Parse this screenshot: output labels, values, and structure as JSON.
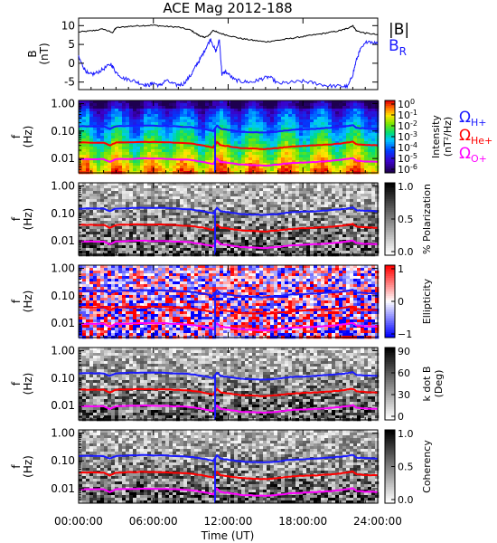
{
  "chart_data": {
    "type": "multi-panel",
    "title": "ACE Mag 2012-188",
    "xlabel": "Time (UT)",
    "x_ticks": [
      "00:00:00",
      "06:00:00",
      "12:00:00",
      "18:00:00",
      "24:00:00"
    ],
    "x_range_hours": [
      0,
      24
    ],
    "panels": [
      {
        "type": "line",
        "ylabel_main": "B",
        "ylabel_unit": "(nT)",
        "y_ticks": [
          "10",
          "5",
          "0",
          "-5"
        ],
        "y_tick_values": [
          10,
          5,
          0,
          -5
        ],
        "ylim": [
          -7,
          12
        ],
        "series": [
          {
            "name": "|B|",
            "color": "#000000",
            "points": [
              [
                0,
                8.3
              ],
              [
                1,
                8.6
              ],
              [
                2,
                9.1
              ],
              [
                2.7,
                8.1
              ],
              [
                3,
                9.4
              ],
              [
                4,
                9.8
              ],
              [
                5,
                10.0
              ],
              [
                6,
                10.1
              ],
              [
                7,
                9.8
              ],
              [
                8,
                9.6
              ],
              [
                9,
                8.8
              ],
              [
                9.6,
                7.5
              ],
              [
                10,
                6.9
              ],
              [
                10.4,
                7.2
              ],
              [
                10.8,
                8.8
              ],
              [
                11.2,
                8.1
              ],
              [
                12,
                7.4
              ],
              [
                13,
                6.6
              ],
              [
                14,
                6.1
              ],
              [
                15,
                5.7
              ],
              [
                16,
                6.1
              ],
              [
                17,
                6.6
              ],
              [
                18,
                7.1
              ],
              [
                19,
                7.6
              ],
              [
                20,
                8.1
              ],
              [
                21,
                8.7
              ],
              [
                21.5,
                9.2
              ],
              [
                22,
                10.0
              ],
              [
                22.3,
                8.6
              ],
              [
                23,
                8.0
              ],
              [
                24,
                7.6
              ]
            ]
          },
          {
            "name": "B",
            "name_sub": "R",
            "color": "#1a1aff",
            "points": [
              [
                0,
                1.6
              ],
              [
                0.4,
                -1.1
              ],
              [
                0.8,
                -3.0
              ],
              [
                1.3,
                -2.8
              ],
              [
                2,
                -1.5
              ],
              [
                2.6,
                -0.2
              ],
              [
                3,
                -2.4
              ],
              [
                3.6,
                -4.0
              ],
              [
                4.3,
                -4.5
              ],
              [
                5,
                -5.4
              ],
              [
                5.6,
                -5.9
              ],
              [
                6,
                -5.2
              ],
              [
                6.5,
                -6.0
              ],
              [
                7,
                -4.6
              ],
              [
                7.8,
                -5.8
              ],
              [
                8.4,
                -5.5
              ],
              [
                9,
                -3.2
              ],
              [
                9.4,
                -0.8
              ],
              [
                9.8,
                1.4
              ],
              [
                10.2,
                4.0
              ],
              [
                10.6,
                6.5
              ],
              [
                11,
                3.0
              ],
              [
                11.3,
                6.2
              ],
              [
                11.5,
                -3.0
              ],
              [
                11.8,
                -2.2
              ],
              [
                12.5,
                -4.4
              ],
              [
                13.2,
                -4.9
              ],
              [
                14,
                -5.0
              ],
              [
                14.6,
                -4.2
              ],
              [
                15.3,
                -3.6
              ],
              [
                16,
                -5.4
              ],
              [
                17,
                -5.1
              ],
              [
                18,
                -4.8
              ],
              [
                19,
                -5.3
              ],
              [
                20,
                -6.0
              ],
              [
                21,
                -6.1
              ],
              [
                21.6,
                -6.2
              ],
              [
                22,
                -3.0
              ],
              [
                22.3,
                1.0
              ],
              [
                22.6,
                3.5
              ],
              [
                23.2,
                6.0
              ],
              [
                24,
                5.2
              ]
            ]
          }
        ]
      },
      {
        "type": "heatmap",
        "ylabel_main": "f",
        "ylabel_unit": "(Hz)",
        "y_ticks": [
          "1.00",
          "0.10",
          "0.01"
        ],
        "ylim_hz": [
          0.003,
          1.3
        ],
        "y_scale": "log",
        "colorbar": "rainbow",
        "colorbar_label": "Intensity",
        "colorbar_unit": "(nT²/Hz)",
        "colorbar_ticks": [
          "10",
          "10",
          "10",
          "10",
          "10",
          "10",
          "10"
        ],
        "colorbar_exponents": [
          "0",
          "-1",
          "-2",
          "-3",
          "-4",
          "-5",
          "-6"
        ],
        "legend_items": [
          {
            "base": "Ω",
            "sub": "H+",
            "color": "#1a1aff"
          },
          {
            "base": "Ω",
            "sub": "He+",
            "color": "#ff0000"
          },
          {
            "base": "Ω",
            "sub": "O+",
            "color": "#ff00ff"
          }
        ]
      },
      {
        "type": "heatmap",
        "ylabel_main": "f",
        "ylabel_unit": "(Hz)",
        "y_ticks": [
          "1.00",
          "0.10",
          "0.01"
        ],
        "y_scale": "log",
        "colorbar": "grayscale",
        "colorbar_label": "% Polarization",
        "colorbar_ticks": [
          "1.0",
          "0.5",
          "0.0"
        ]
      },
      {
        "type": "heatmap",
        "ylabel_main": "f",
        "ylabel_unit": "(Hz)",
        "y_ticks": [
          "1.00",
          "0.10",
          "0.01"
        ],
        "y_scale": "log",
        "colorbar": "red-white-blue",
        "colorbar_label": "Ellipticity",
        "colorbar_ticks": [
          "1",
          "0",
          "−1"
        ]
      },
      {
        "type": "heatmap",
        "ylabel_main": "f",
        "ylabel_unit": "(Hz)",
        "y_ticks": [
          "1.00",
          "0.10",
          "0.01"
        ],
        "y_scale": "log",
        "colorbar": "grayscale",
        "colorbar_label": "k dot B",
        "colorbar_unit": "(Deg)",
        "colorbar_ticks": [
          "90",
          "60",
          "30",
          "0"
        ]
      },
      {
        "type": "heatmap",
        "ylabel_main": "f",
        "ylabel_unit": "(Hz)",
        "y_ticks": [
          "1.00",
          "0.10",
          "0.01"
        ],
        "y_scale": "log",
        "colorbar": "grayscale",
        "colorbar_label": "Coherency",
        "colorbar_ticks": [
          "1.0",
          "0.5",
          "0.0"
        ]
      }
    ],
    "gyrofrequency_lines": [
      {
        "name": "ΩH+",
        "color": "#1a1aff",
        "points_hz": [
          [
            0,
            0.15
          ],
          [
            2,
            0.15
          ],
          [
            2.5,
            0.12
          ],
          [
            3,
            0.15
          ],
          [
            5,
            0.16
          ],
          [
            7,
            0.155
          ],
          [
            9,
            0.14
          ],
          [
            10,
            0.12
          ],
          [
            10.8,
            0.1
          ],
          [
            11.1,
            0.16
          ],
          [
            11.4,
            0.12
          ],
          [
            12,
            0.11
          ],
          [
            13,
            0.095
          ],
          [
            14,
            0.09
          ],
          [
            15,
            0.088
          ],
          [
            16,
            0.095
          ],
          [
            17,
            0.11
          ],
          [
            18,
            0.115
          ],
          [
            19,
            0.12
          ],
          [
            20,
            0.13
          ],
          [
            21,
            0.14
          ],
          [
            21.5,
            0.15
          ],
          [
            22,
            0.165
          ],
          [
            22.3,
            0.13
          ],
          [
            23,
            0.125
          ],
          [
            24,
            0.12
          ]
        ]
      },
      {
        "name": "ΩHe+",
        "color": "#ff0000",
        "points_hz": [
          [
            0,
            0.038
          ],
          [
            2,
            0.038
          ],
          [
            2.5,
            0.03
          ],
          [
            3,
            0.038
          ],
          [
            5,
            0.04
          ],
          [
            7,
            0.039
          ],
          [
            9,
            0.035
          ],
          [
            10,
            0.03
          ],
          [
            10.8,
            0.025
          ],
          [
            11.1,
            0.04
          ],
          [
            11.4,
            0.03
          ],
          [
            12,
            0.028
          ],
          [
            13,
            0.024
          ],
          [
            14,
            0.023
          ],
          [
            15,
            0.022
          ],
          [
            16,
            0.024
          ],
          [
            17,
            0.027
          ],
          [
            18,
            0.029
          ],
          [
            19,
            0.03
          ],
          [
            20,
            0.032
          ],
          [
            21,
            0.035
          ],
          [
            21.5,
            0.038
          ],
          [
            22,
            0.041
          ],
          [
            22.3,
            0.033
          ],
          [
            23,
            0.031
          ],
          [
            24,
            0.03
          ]
        ]
      },
      {
        "name": "ΩO+",
        "color": "#ff00ff",
        "points_hz": [
          [
            0,
            0.0095
          ],
          [
            2,
            0.0095
          ],
          [
            2.5,
            0.0075
          ],
          [
            3,
            0.0095
          ],
          [
            5,
            0.01
          ],
          [
            7,
            0.0098
          ],
          [
            9,
            0.0088
          ],
          [
            10,
            0.0075
          ],
          [
            10.8,
            0.0063
          ],
          [
            11.1,
            0.01
          ],
          [
            11.4,
            0.0075
          ],
          [
            12,
            0.007
          ],
          [
            13,
            0.006
          ],
          [
            14,
            0.0057
          ],
          [
            15,
            0.0055
          ],
          [
            16,
            0.006
          ],
          [
            17,
            0.0068
          ],
          [
            18,
            0.0072
          ],
          [
            19,
            0.0075
          ],
          [
            20,
            0.008
          ],
          [
            21,
            0.0088
          ],
          [
            21.5,
            0.0095
          ],
          [
            22,
            0.0103
          ],
          [
            22.3,
            0.0083
          ],
          [
            23,
            0.0078
          ],
          [
            24,
            0.0075
          ]
        ]
      }
    ]
  }
}
